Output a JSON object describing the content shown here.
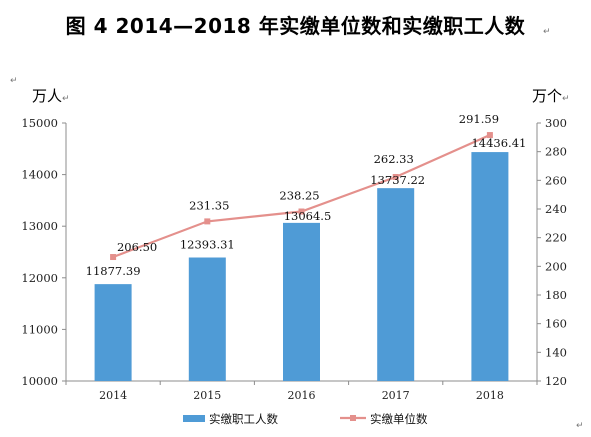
{
  "title": "图 4 2014—2018 年实缴单位数和实缴职工人数",
  "unit_left": "万人",
  "unit_right": "万个",
  "chart_data": {
    "type": "bar",
    "categories": [
      "2014",
      "2015",
      "2016",
      "2017",
      "2018"
    ],
    "series": [
      {
        "name": "实缴职工人数",
        "type": "bar",
        "axis": "left",
        "values": [
          11877.39,
          12393.31,
          13064.5,
          13737.22,
          14436.41
        ],
        "labels": [
          "11877.39",
          "12393.31",
          "13064.5",
          "13737.22",
          "14436.41"
        ],
        "color": "#4f9bd6"
      },
      {
        "name": "实缴单位数",
        "type": "line",
        "axis": "right",
        "values": [
          206.5,
          231.35,
          238.25,
          262.33,
          291.59
        ],
        "labels": [
          "206.50",
          "231.35",
          "238.25",
          "262.33",
          "291.59"
        ],
        "color": "#e4908c"
      }
    ],
    "y_left": {
      "range": [
        10000,
        15000
      ],
      "ticks": [
        "10000",
        "11000",
        "12000",
        "13000",
        "14000",
        "15000"
      ]
    },
    "y_right": {
      "range": [
        120,
        300
      ],
      "ticks": [
        "120",
        "140",
        "160",
        "180",
        "200",
        "220",
        "240",
        "260",
        "280",
        "300"
      ]
    },
    "grid": false,
    "legend_position": "bottom"
  }
}
